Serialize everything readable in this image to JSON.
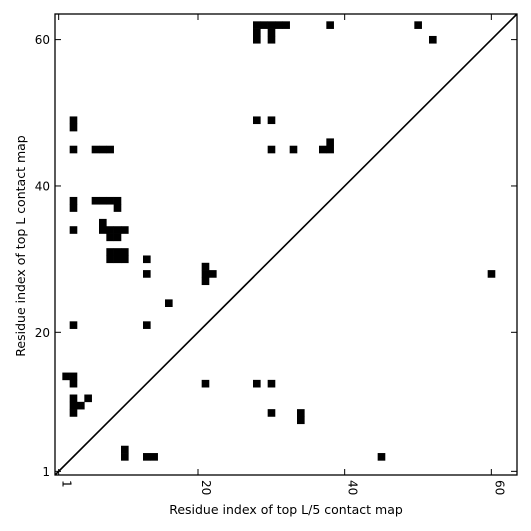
{
  "chart_data": {
    "type": "scatter",
    "xlabel": "Residue index of top L/5 contact map",
    "ylabel": "Residue index of top L contact map",
    "xlim": [
      0.5,
      63.5
    ],
    "ylim": [
      0.5,
      63.5
    ],
    "x_ticks": [
      {
        "value": 1,
        "label": "1"
      },
      {
        "value": 20,
        "label": "20"
      },
      {
        "value": 40,
        "label": "40"
      },
      {
        "value": 60,
        "label": "60"
      }
    ],
    "y_ticks": [
      {
        "value": 1,
        "label": "1"
      },
      {
        "value": 20,
        "label": "20"
      },
      {
        "value": 40,
        "label": "40"
      },
      {
        "value": 60,
        "label": "60"
      }
    ],
    "diagonal": [
      [
        0.5,
        0.5
      ],
      [
        63.5,
        63.5
      ]
    ],
    "grid": false,
    "legend": "none",
    "marker_color": "#000000",
    "series": [
      {
        "values": [
          [
            28,
            62
          ],
          [
            29,
            62
          ],
          [
            30,
            62
          ],
          [
            31,
            62
          ],
          [
            32,
            62
          ],
          [
            28,
            61
          ],
          [
            30,
            61
          ],
          [
            28,
            60
          ],
          [
            30,
            60
          ],
          [
            38,
            62
          ],
          [
            50,
            62
          ],
          [
            52,
            60
          ],
          [
            3,
            49
          ],
          [
            3,
            48
          ],
          [
            28,
            49
          ],
          [
            30,
            49
          ],
          [
            3,
            45
          ],
          [
            6,
            45
          ],
          [
            7,
            45
          ],
          [
            8,
            45
          ],
          [
            30,
            45
          ],
          [
            33,
            45
          ],
          [
            38,
            46
          ],
          [
            37,
            45
          ],
          [
            38,
            45
          ],
          [
            3,
            38
          ],
          [
            6,
            38
          ],
          [
            7,
            38
          ],
          [
            8,
            38
          ],
          [
            9,
            38
          ],
          [
            3,
            37
          ],
          [
            9,
            37
          ],
          [
            7,
            35
          ],
          [
            3,
            34
          ],
          [
            7,
            34
          ],
          [
            8,
            34
          ],
          [
            9,
            34
          ],
          [
            10,
            34
          ],
          [
            8,
            33
          ],
          [
            9,
            33
          ],
          [
            8,
            31
          ],
          [
            9,
            31
          ],
          [
            10,
            31
          ],
          [
            8,
            30
          ],
          [
            9,
            30
          ],
          [
            10,
            30
          ],
          [
            13,
            30
          ],
          [
            13,
            28
          ],
          [
            21,
            29
          ],
          [
            21,
            28
          ],
          [
            22,
            28
          ],
          [
            21,
            27
          ],
          [
            60,
            28
          ],
          [
            16,
            24
          ],
          [
            3,
            21
          ],
          [
            13,
            21
          ],
          [
            2,
            14
          ],
          [
            3,
            14
          ],
          [
            3,
            13
          ],
          [
            21,
            13
          ],
          [
            28,
            13
          ],
          [
            30,
            13
          ],
          [
            5,
            11
          ],
          [
            3,
            11
          ],
          [
            3,
            10
          ],
          [
            4,
            10
          ],
          [
            3,
            9
          ],
          [
            30,
            9
          ],
          [
            34,
            9
          ],
          [
            34,
            8
          ],
          [
            10,
            4
          ],
          [
            10,
            3
          ],
          [
            13,
            3
          ],
          [
            14,
            3
          ],
          [
            45,
            3
          ]
        ]
      }
    ]
  }
}
